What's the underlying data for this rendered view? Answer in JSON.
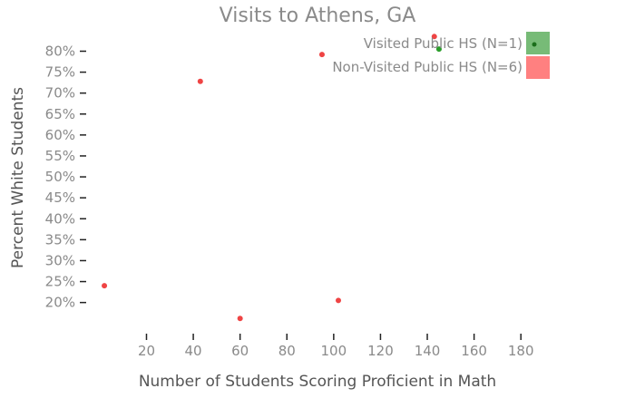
{
  "chart_data": {
    "type": "scatter",
    "title": "Visits to Athens, GA",
    "xlabel": "Number of Students Scoring Proficient in Math",
    "ylabel": "Percent White Students",
    "xlim": [
      -5,
      190
    ],
    "ylim": [
      13,
      84
    ],
    "x_ticks": [
      "20",
      "40",
      "60",
      "80",
      "100",
      "120",
      "140",
      "160",
      "180"
    ],
    "y_ticks": [
      "20%",
      "25%",
      "30%",
      "35%",
      "40%",
      "45%",
      "50%",
      "55%",
      "60%",
      "65%",
      "70%",
      "75%",
      "80%"
    ],
    "grid": false,
    "legend_position": "top-right",
    "colors": {
      "visited": "#2a9d2a",
      "non_visited": "#ef4444",
      "visited_swatch": "#77bb77",
      "non_visited_swatch": "#ff8080"
    },
    "series": [
      {
        "name": "Visited Public HS (N=1)",
        "points": [
          {
            "x": 145,
            "y": 80.5
          }
        ]
      },
      {
        "name": "Non-Visited Public HS (N=6)",
        "points": [
          {
            "x": 2,
            "y": 24
          },
          {
            "x": 43,
            "y": 72.8
          },
          {
            "x": 60,
            "y": 16.2
          },
          {
            "x": 95,
            "y": 79.2
          },
          {
            "x": 102,
            "y": 20.5
          },
          {
            "x": 143,
            "y": 83.5
          }
        ]
      }
    ]
  }
}
